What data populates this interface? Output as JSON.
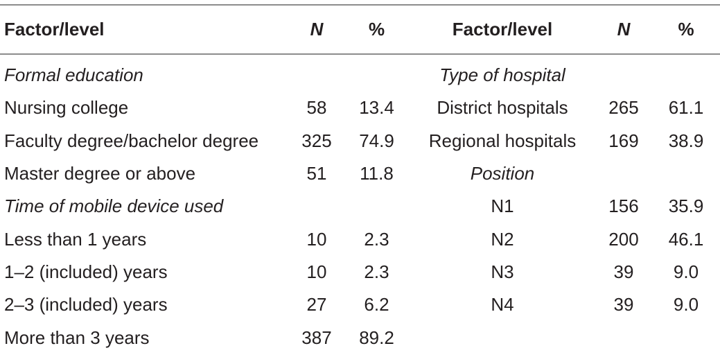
{
  "header": {
    "col1": "Factor/level",
    "col2": "N",
    "col3": "%",
    "col4": "Factor/level",
    "col5": "N",
    "col6": "%"
  },
  "rows": [
    {
      "a": "Formal education",
      "an": "",
      "ap": "",
      "b": "Type of hospital",
      "bn": "",
      "bp": ""
    },
    {
      "a": "Nursing college",
      "an": "58",
      "ap": "13.4",
      "b": "District hospitals",
      "bn": "265",
      "bp": "61.1"
    },
    {
      "a": "Faculty degree/bachelor degree",
      "an": "325",
      "ap": "74.9",
      "b": "Regional hospitals",
      "bn": "169",
      "bp": "38.9"
    },
    {
      "a": "Master degree or above",
      "an": "51",
      "ap": "11.8",
      "b": "Position",
      "bn": "",
      "bp": ""
    },
    {
      "a": "Time of mobile device used",
      "an": "",
      "ap": "",
      "b": "N1",
      "bn": "156",
      "bp": "35.9"
    },
    {
      "a": "Less than 1 years",
      "an": "10",
      "ap": "2.3",
      "b": "N2",
      "bn": "200",
      "bp": "46.1"
    },
    {
      "a": "1–2 (included) years",
      "an": "10",
      "ap": "2.3",
      "b": "N3",
      "bn": "39",
      "bp": "9.0"
    },
    {
      "a": "2–3 (included) years",
      "an": "27",
      "ap": "6.2",
      "b": "N4",
      "bn": "39",
      "bp": "9.0"
    },
    {
      "a": "More than 3 years",
      "an": "387",
      "ap": "89.2",
      "b": "",
      "bn": "",
      "bp": ""
    }
  ]
}
